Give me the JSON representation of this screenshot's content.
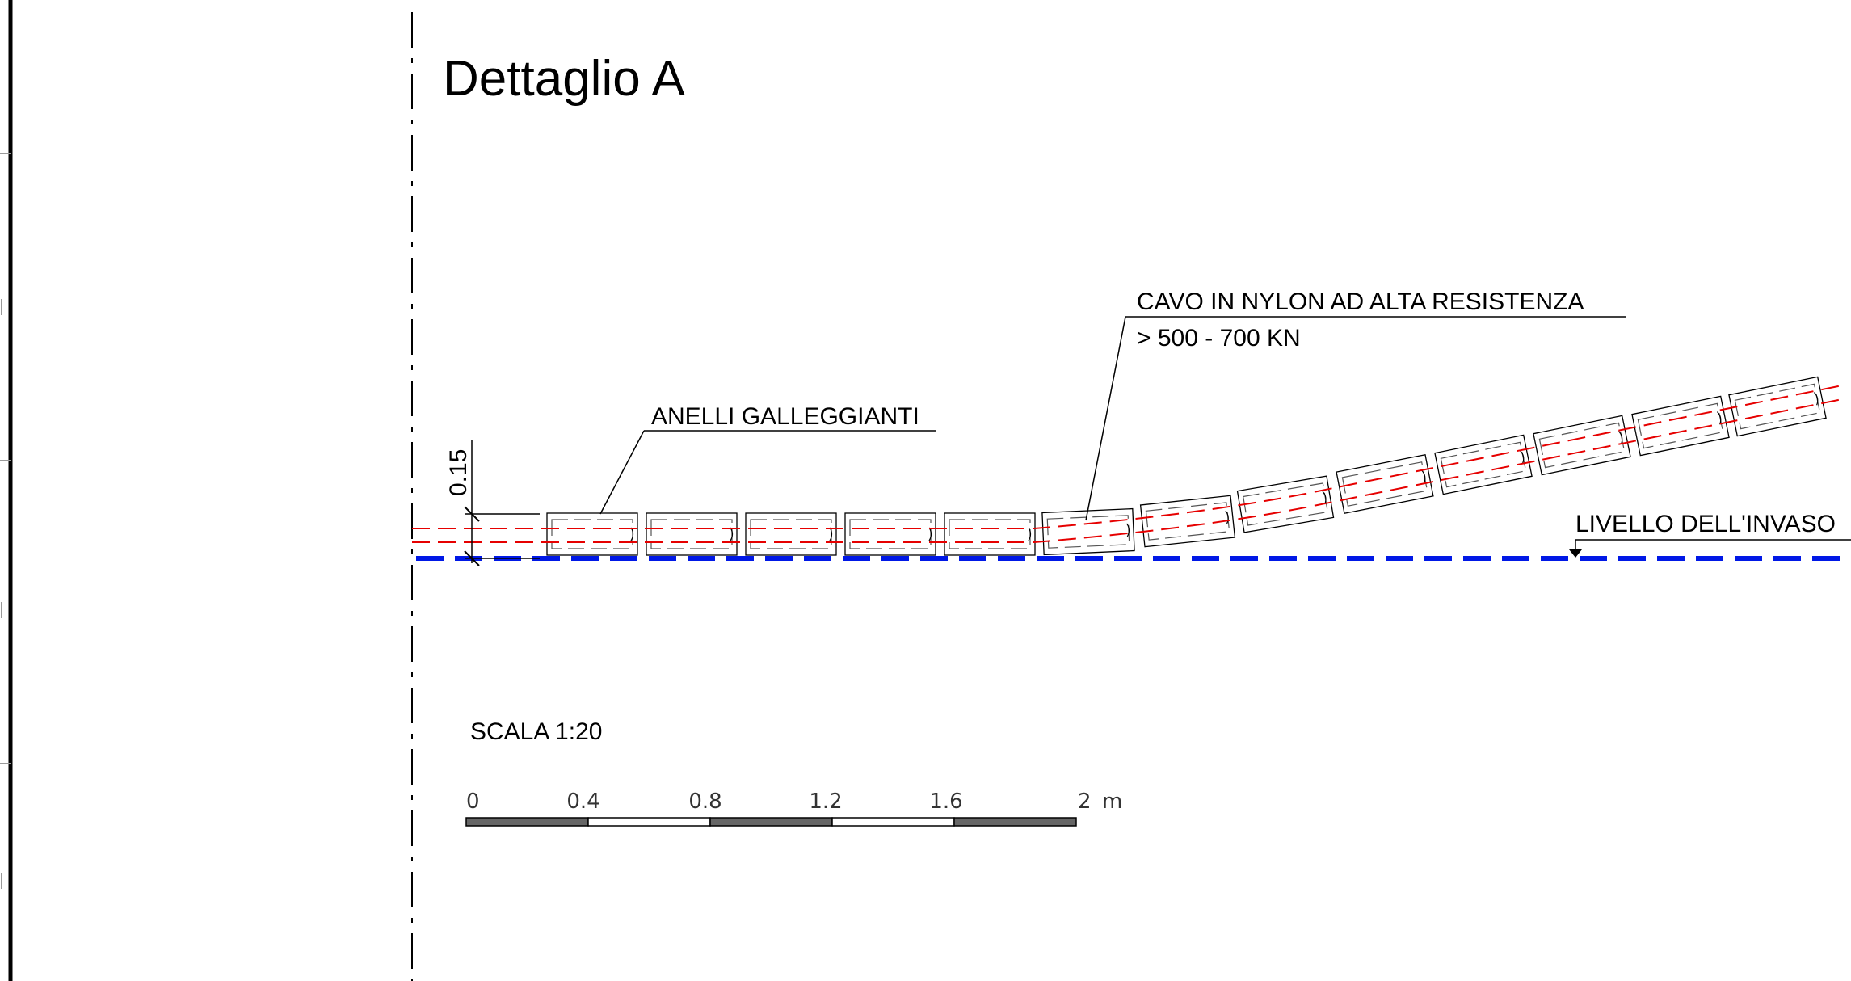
{
  "title": "Dettaglio A",
  "labels": {
    "rings": "ANELLI GALLEGGIANTI",
    "cable_line1": "CAVO IN NYLON AD ALTA RESISTENZA",
    "cable_line2": "> 500 - 700 KN",
    "water_level": "LIVELLO DELL'INVASO",
    "dimension": "0.15",
    "scale": "SCALA 1:20"
  },
  "scale_bar": {
    "unit": "m",
    "ticks": [
      "0",
      "0.4",
      "0.8",
      "1.2",
      "1.6",
      "2"
    ]
  },
  "colors": {
    "water_line": "#0018e6",
    "cable": "#e60000",
    "line": "#000000",
    "ring_dash": "#555555",
    "scale_dark": "#666666"
  }
}
